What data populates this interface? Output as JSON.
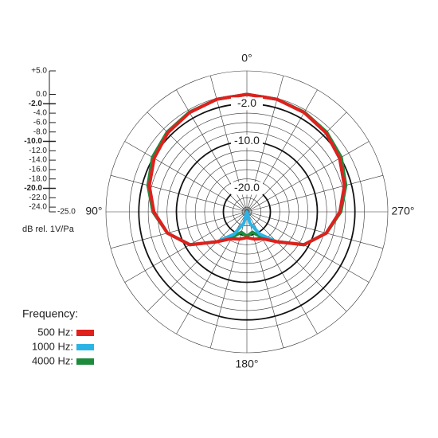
{
  "chart_data": {
    "type": "polar",
    "rlim": [
      -25,
      5
    ],
    "rticks": [
      {
        "value": 5,
        "label": "+5.0"
      },
      {
        "value": 0,
        "label": "0.0"
      },
      {
        "value": -2,
        "label": "-2.0"
      },
      {
        "value": -4,
        "label": "-4.0"
      },
      {
        "value": -6,
        "label": "-6.0"
      },
      {
        "value": -8,
        "label": "-8.0"
      },
      {
        "value": -10,
        "label": "-10.0"
      },
      {
        "value": -12,
        "label": "-12.0"
      },
      {
        "value": -14,
        "label": "-14.0"
      },
      {
        "value": -16,
        "label": "-16.0"
      },
      {
        "value": -18,
        "label": "-18.0"
      },
      {
        "value": -20,
        "label": "-20.0"
      },
      {
        "value": -22,
        "label": "-22.0"
      },
      {
        "value": -24,
        "label": "-24.0"
      },
      {
        "value": -25,
        "label": "-25.0"
      }
    ],
    "circle_labels": [
      {
        "value": -2,
        "label": "-2.0"
      },
      {
        "value": -10,
        "label": "-10.0"
      },
      {
        "value": -20,
        "label": "-20.0"
      }
    ],
    "r_axis_label": "dB rel. 1V/Pa",
    "angle_labels": [
      {
        "value": 0,
        "label": "0°"
      },
      {
        "value": 90,
        "label": "90°"
      },
      {
        "value": 180,
        "label": "180°"
      },
      {
        "value": 270,
        "label": "270°"
      }
    ],
    "spoke_step": 15,
    "legend_title": "Frequency:",
    "theta": [
      0,
      15,
      30,
      45,
      60,
      75,
      90,
      105,
      120,
      135,
      150,
      165,
      180,
      195,
      210,
      225,
      240,
      255,
      270,
      285,
      300,
      315,
      330,
      345
    ],
    "series": [
      {
        "name": "4000 Hz:",
        "color": "#1e8a3c",
        "values": [
          0,
          -0.2,
          -0.5,
          -1,
          -1.8,
          -3.2,
          -5,
          -7.5,
          -11,
          -16,
          -18.8,
          -20.5,
          -19.8,
          -20.5,
          -18.8,
          -16,
          -11,
          -7.5,
          -5,
          -3.2,
          -1.8,
          -1,
          -0.5,
          -0.2
        ]
      },
      {
        "name": "1000 Hz:",
        "color": "#2bb3e6",
        "values": [
          0,
          -0.2,
          -0.6,
          -1.2,
          -2.2,
          -3.5,
          -5.2,
          -7.5,
          -11,
          -16,
          -19.5,
          -22.5,
          -25,
          -22.5,
          -19.5,
          -16,
          -11,
          -7.5,
          -5.2,
          -3.5,
          -2.2,
          -1.2,
          -0.6,
          -0.2
        ]
      },
      {
        "name": "500 Hz:",
        "color": "#e0201b",
        "values": [
          0,
          -0.2,
          -0.6,
          -1.2,
          -2.2,
          -3.5,
          -5.2,
          -7.5,
          -11,
          -16,
          -18.4,
          -19,
          -19.5,
          -19,
          -18.4,
          -16,
          -11,
          -7.5,
          -5.2,
          -3.5,
          -2.2,
          -1.2,
          -0.6,
          -0.2
        ]
      }
    ],
    "legend_order": [
      2,
      1,
      0
    ]
  }
}
